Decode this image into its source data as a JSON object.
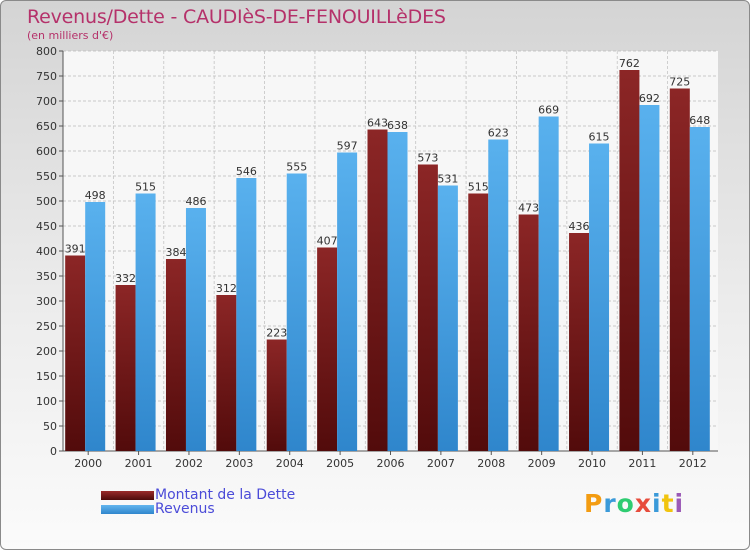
{
  "title": "Revenus/Dette - CAUDIèS-DE-FENOUILLèDES",
  "subtitle": "(en milliers d'€)",
  "logo": {
    "letters": [
      "P",
      "r",
      "o",
      "x",
      "i",
      "t",
      "i"
    ],
    "colors": [
      "#f39c12",
      "#3a9ad9",
      "#2ecc71",
      "#e74c3c",
      "#3a9ad9",
      "#f1c40f",
      "#9b59b6"
    ]
  },
  "colors": {
    "debt": "#7a1b1b",
    "revenue": "#4aa3e6",
    "title": "#b5316a",
    "legend_text": "#4b4bd8"
  },
  "chart_data": {
    "type": "bar",
    "categories": [
      "2000",
      "2001",
      "2002",
      "2003",
      "2004",
      "2005",
      "2006",
      "2007",
      "2008",
      "2009",
      "2010",
      "2011",
      "2012"
    ],
    "series": [
      {
        "name": "Montant de la Dette",
        "values": [
          391,
          332,
          384,
          312,
          223,
          407,
          643,
          573,
          515,
          473,
          436,
          762,
          725
        ]
      },
      {
        "name": "Revenus",
        "values": [
          498,
          515,
          486,
          546,
          555,
          597,
          638,
          531,
          623,
          669,
          615,
          692,
          648
        ]
      }
    ],
    "ylim": [
      0,
      800
    ],
    "yticks": [
      0,
      50,
      100,
      150,
      200,
      250,
      300,
      350,
      400,
      450,
      500,
      550,
      600,
      650,
      700,
      750,
      800
    ],
    "grid": true,
    "legend": "bottom-left"
  }
}
